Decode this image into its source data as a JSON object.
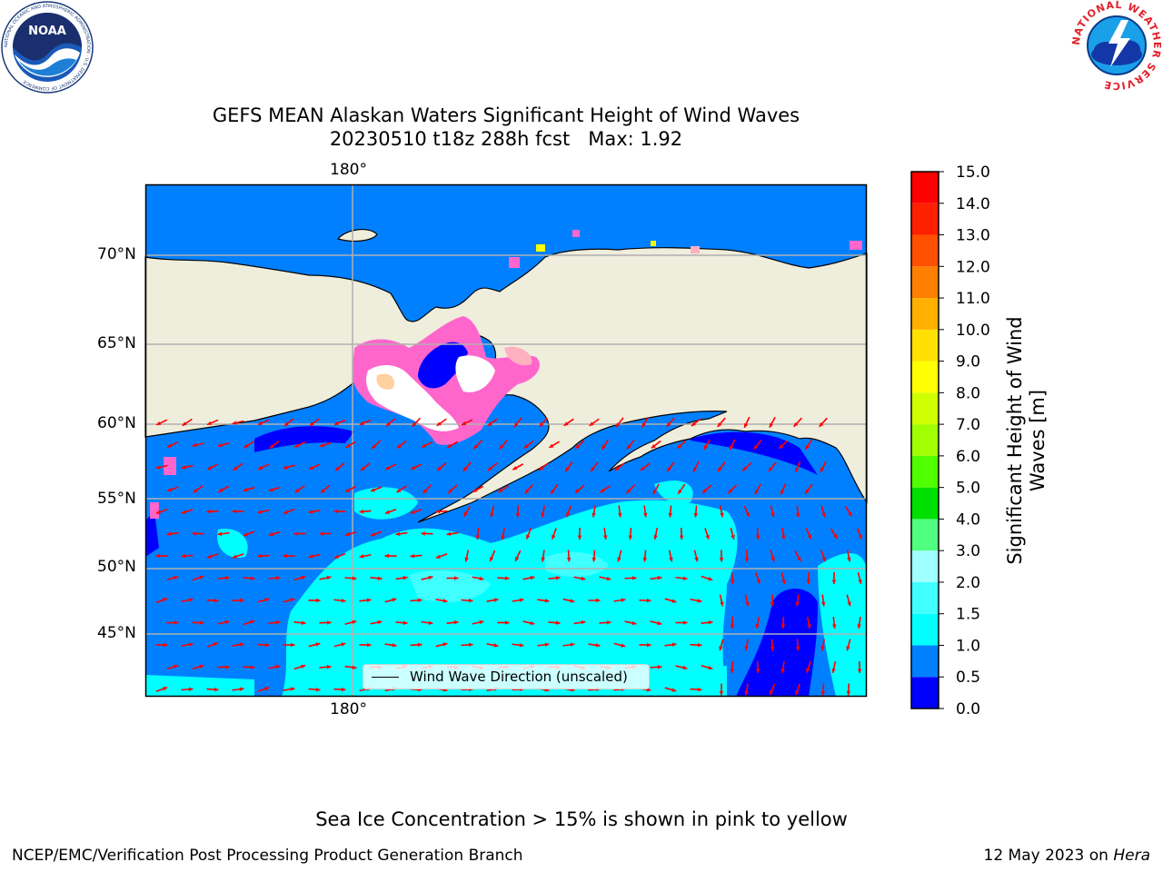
{
  "title": {
    "line1": "GEFS MEAN Alaskan Waters Significant Height of Wind Waves",
    "line2": "20230510 t18z 288h fcst   Max: 1.92"
  },
  "map": {
    "lon_labels_top": [
      "180°"
    ],
    "lon_labels_bottom": [
      "180°"
    ],
    "lat_labels": [
      "70°N",
      "65°N",
      "60°N",
      "55°N",
      "50°N",
      "45°N"
    ],
    "land_color": "#efeddc",
    "grid_color": "#b0b0b0",
    "arrow_color": "#ff0000",
    "legend_label": "Wind Wave Direction (unscaled)"
  },
  "colorbar": {
    "title": "Significant Height of Wind Waves [m]",
    "ticks": [
      "0.0",
      "0.5",
      "1.0",
      "1.5",
      "2.0",
      "3.0",
      "4.0",
      "5.0",
      "6.0",
      "7.0",
      "8.0",
      "9.0",
      "10.0",
      "11.0",
      "12.0",
      "13.0",
      "14.0",
      "15.0"
    ],
    "colors": [
      "#0000ff",
      "#0080ff",
      "#00ffff",
      "#40ffff",
      "#a0ffff",
      "#50ff80",
      "#00e000",
      "#50ff00",
      "#a0ff00",
      "#d0ff00",
      "#ffff00",
      "#ffe000",
      "#ffb000",
      "#ff8000",
      "#ff5000",
      "#ff2000",
      "#ff0000"
    ]
  },
  "logos": {
    "noaa": {
      "text": "NOAA",
      "ring": "NATIONAL OCEANIC AND ATMOSPHERIC ADMINISTRATION · U.S. DEPARTMENT OF COMMERCE"
    },
    "nws": {
      "ring": "NATIONAL WEATHER SERVICE"
    }
  },
  "footer": {
    "note": "Sea Ice Concentration > 15% is shown in pink to yellow",
    "left": "NCEP/EMC/Verification Post Processing Product Generation Branch",
    "right_date": "12 May 2023 on",
    "right_machine": "Hera"
  }
}
